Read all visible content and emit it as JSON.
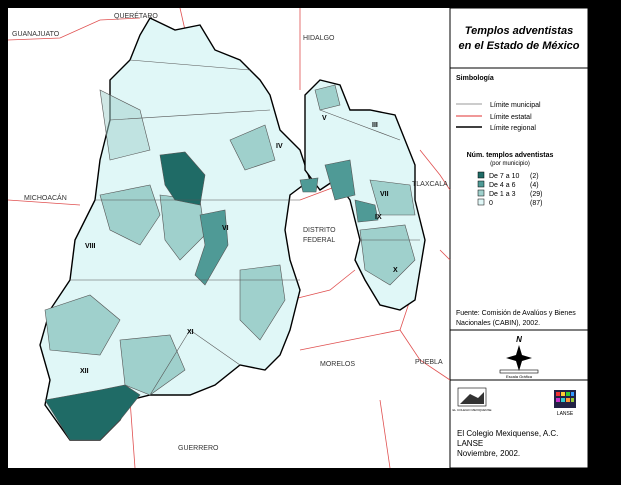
{
  "header": {
    "title": [
      "Templos adventistas",
      "en el Estado de México"
    ]
  },
  "neighbors": {
    "queretaro": "QUERÉTARO",
    "guanajuato": "GUANAJUATO",
    "hidalgo": "HIDALGO",
    "michoacan": "MICHOACÁN",
    "tlaxcala": "TLAXCALA",
    "distrito_federal": [
      "DISTRITO",
      "FEDERAL"
    ],
    "morelos": "MORELOS",
    "puebla": "PUEBLA",
    "guerrero": "GUERRERO"
  },
  "regions": [
    "III",
    "IV",
    "V",
    "VI",
    "VII",
    "VIII",
    "IX",
    "X",
    "XI",
    "XII"
  ],
  "symbology": {
    "title": "Simbología",
    "lines": [
      "Límite municipal",
      "Límite estatal",
      "Límite regional"
    ]
  },
  "legend": {
    "title": "Núm. templos adventistas",
    "subtitle": "(por municipio)",
    "entries": [
      {
        "label": "De 7 a 10",
        "count": "(2)"
      },
      {
        "label": "De 4 a 6",
        "count": "(4)"
      },
      {
        "label": "De 1 a 3",
        "count": "(29)"
      },
      {
        "label": "0",
        "count": "(87)"
      }
    ]
  },
  "source": [
    "Fuente: Comisión de Avalúos y Bienes",
    "Nacionales (CABIN), 2002."
  ],
  "compass": "N",
  "scale": "Escala Gráfica",
  "logos": [
    "EL COLEGIO MEXIQUENSE",
    "LANSE"
  ],
  "footer": [
    "El Colegio Mexiquense, A.C.",
    "LANSE",
    "Noviembre, 2002."
  ]
}
